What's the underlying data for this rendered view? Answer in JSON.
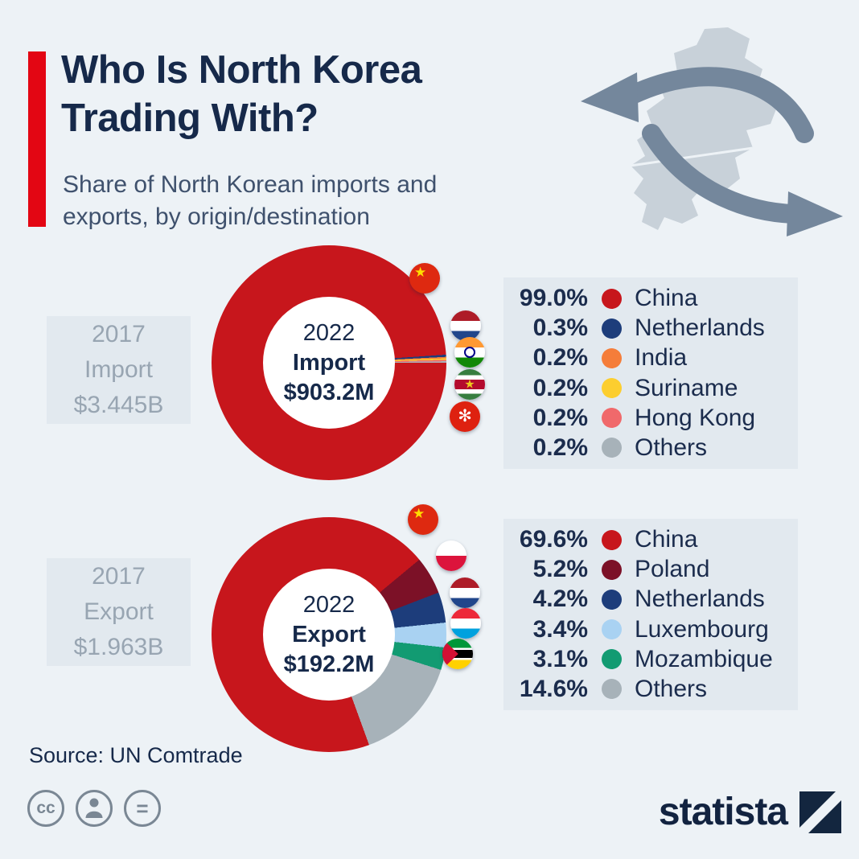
{
  "page": {
    "background": "#edf2f6",
    "accent_red": "#e30613",
    "panel_bg": "#e2e9ef",
    "navy_text": "#16294a"
  },
  "header": {
    "title": "Who Is North Korea Trading With?",
    "title_lines": [
      "Who Is North Korea",
      "Trading With?"
    ],
    "subtitle": "Share of North Korean imports and exports, by origin/destination",
    "subtitle_lines": [
      "Share of North Korean imports and",
      "exports, by origin/destination"
    ],
    "map_icon": "north-korea-map-with-trade-arrows"
  },
  "chart_data": [
    {
      "type": "donut",
      "id": "import",
      "year_label": "2022",
      "flow_label": "Import",
      "total_label": "$903.2M",
      "comparison": {
        "year": "2017",
        "flow": "Import",
        "value": "$3.445B"
      },
      "start_angle": 90,
      "legend_position": "right",
      "segments": [
        {
          "label": "China",
          "pct": "99.0%",
          "value": 99.0,
          "color": "#c7161c",
          "flag": "china"
        },
        {
          "label": "Netherlands",
          "pct": "0.3%",
          "value": 0.3,
          "color": "#1d3d7b",
          "flag": "netherlands"
        },
        {
          "label": "India",
          "pct": "0.2%",
          "value": 0.2,
          "color": "#f57d3a",
          "flag": "india"
        },
        {
          "label": "Suriname",
          "pct": "0.2%",
          "value": 0.2,
          "color": "#fcce2f",
          "flag": "suriname"
        },
        {
          "label": "Hong Kong",
          "pct": "0.2%",
          "value": 0.2,
          "color": "#f0696b",
          "flag": "hongkong"
        },
        {
          "label": "Others",
          "pct": "0.2%",
          "value": 0.2,
          "color": "#a7b2b9",
          "flag": null
        }
      ]
    },
    {
      "type": "donut",
      "id": "export",
      "year_label": "2022",
      "flow_label": "Export",
      "total_label": "$192.2M",
      "comparison": {
        "year": "2017",
        "flow": "Export",
        "value": "$1.963B"
      },
      "start_angle": 160,
      "legend_position": "right",
      "segments": [
        {
          "label": "China",
          "pct": "69.6%",
          "value": 69.6,
          "color": "#c7161c",
          "flag": "china"
        },
        {
          "label": "Poland",
          "pct": "5.2%",
          "value": 5.2,
          "color": "#7c1127",
          "flag": "poland"
        },
        {
          "label": "Netherlands",
          "pct": "4.2%",
          "value": 4.2,
          "color": "#1d3d7b",
          "flag": "netherlands"
        },
        {
          "label": "Luxembourg",
          "pct": "3.4%",
          "value": 3.4,
          "color": "#a9d2f2",
          "flag": "luxembourg"
        },
        {
          "label": "Mozambique",
          "pct": "3.1%",
          "value": 3.1,
          "color": "#129b72",
          "flag": "mozambique"
        },
        {
          "label": "Others",
          "pct": "14.6%",
          "value": 14.6,
          "color": "#a7b2b9",
          "flag": null
        }
      ]
    }
  ],
  "footer": {
    "source": "Source: UN Comtrade",
    "license_icons": [
      "cc-icon",
      "attribution-person-icon",
      "equals-icon"
    ],
    "brand": "statista"
  }
}
